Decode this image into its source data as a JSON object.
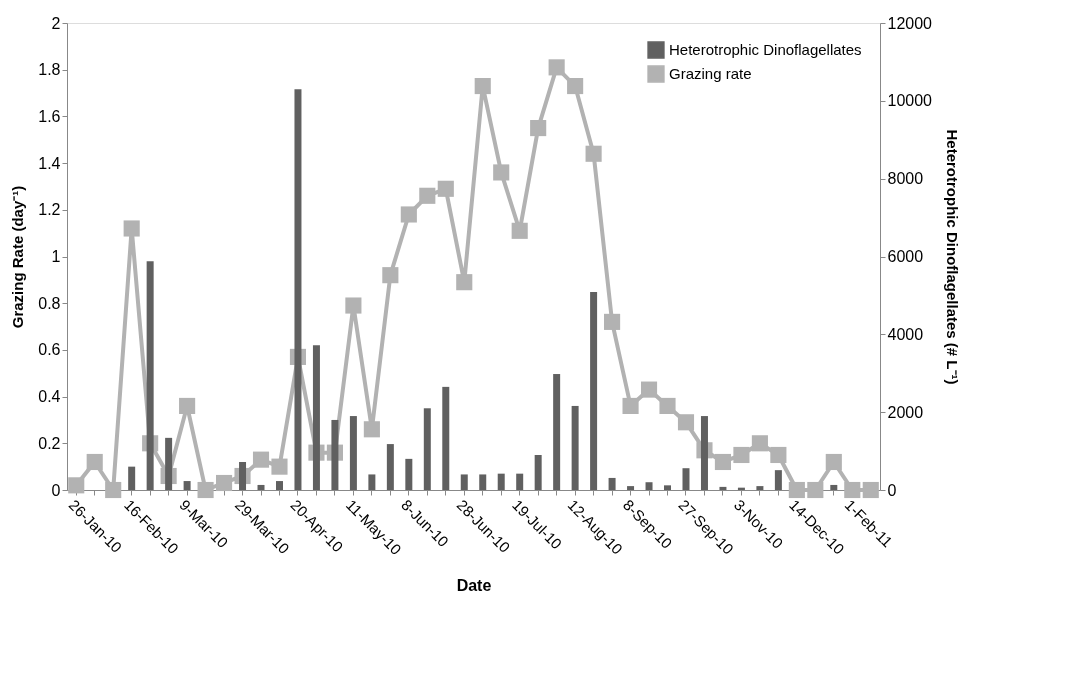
{
  "chart_data": {
    "type": "bar",
    "xlabel": "Date",
    "ylabel": "Grazing Rate (day⁻¹)",
    "y2label": "Heterotrophic Dinoflagellates  (# L⁻¹)",
    "categories": [
      "26-Jan-10",
      null,
      null,
      "16-Feb-10",
      null,
      null,
      "9-Mar-10",
      null,
      null,
      "29-Mar-10",
      null,
      null,
      "20-Apr-10",
      null,
      null,
      "11-May-10",
      null,
      null,
      "8-Jun-10",
      null,
      null,
      "28-Jun-10",
      null,
      null,
      "19-Jul-10",
      null,
      null,
      "12-Aug-10",
      null,
      null,
      "8-Sep-10",
      null,
      null,
      "27-Sep-10",
      null,
      null,
      "3-Nov-10",
      null,
      null,
      "14-Dec-10",
      null,
      null,
      "1-Feb-11",
      null
    ],
    "series": [
      {
        "name": "Heterotrophic Dinoflagellates",
        "axis": "y2",
        "color": "#606060",
        "values": [
          0,
          0,
          0,
          600,
          5880,
          1340,
          230,
          0,
          0,
          720,
          130,
          230,
          10300,
          3720,
          1800,
          1900,
          400,
          1180,
          800,
          2100,
          2650,
          400,
          400,
          420,
          420,
          900,
          2980,
          2160,
          5090,
          310,
          100,
          200,
          120,
          560,
          1900,
          80,
          60,
          100,
          510,
          0,
          0,
          130,
          0,
          0
        ]
      },
      {
        "name": "Grazing rate",
        "type": "line",
        "color": "#b2b2b2",
        "values": [
          0.02,
          0.12,
          0.0,
          1.12,
          0.2,
          0.06,
          0.36,
          0.0,
          0.03,
          0.06,
          0.13,
          0.1,
          0.57,
          0.16,
          0.16,
          0.79,
          0.26,
          0.92,
          1.18,
          1.26,
          1.29,
          0.89,
          1.73,
          1.36,
          1.11,
          1.55,
          1.81,
          1.73,
          1.44,
          0.72,
          0.36,
          0.43,
          0.36,
          0.29,
          0.17,
          0.12,
          0.15,
          0.2,
          0.15,
          0.0,
          0.0,
          0.12,
          0.0,
          0.0
        ]
      }
    ],
    "ylim": [
      0,
      2
    ],
    "yticks": [
      0,
      0.2,
      0.4,
      0.6,
      0.8,
      1,
      1.2,
      1.4,
      1.6,
      1.8,
      2
    ],
    "y2lim": [
      0,
      12000
    ],
    "y2ticks": [
      0,
      2000,
      4000,
      6000,
      8000,
      10000,
      12000
    ],
    "grid": false,
    "legend": "top right",
    "marker": "square",
    "line_style": "solid"
  }
}
